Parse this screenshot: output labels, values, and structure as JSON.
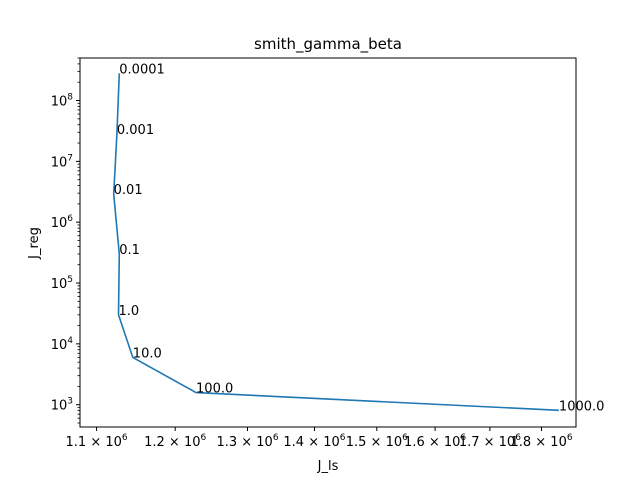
{
  "chart_data": {
    "type": "line",
    "title": "smith_gamma_beta",
    "xlabel": "J_ls",
    "ylabel": "J_reg",
    "xscale": "log",
    "yscale": "log",
    "xlim": [
      1080000,
      1870000
    ],
    "ylim": [
      430,
      500000000
    ],
    "grid": false,
    "color": "#1f77b4",
    "x_ticks": [
      {
        "value": 1100000,
        "mantissa": "1.1",
        "base": "10",
        "exp": "6"
      },
      {
        "value": 1200000,
        "mantissa": "1.2",
        "base": "10",
        "exp": "6"
      },
      {
        "value": 1300000,
        "mantissa": "1.3",
        "base": "10",
        "exp": "6"
      },
      {
        "value": 1400000,
        "mantissa": "1.4",
        "base": "10",
        "exp": "6"
      },
      {
        "value": 1500000,
        "mantissa": "1.5",
        "base": "10",
        "exp": "6"
      },
      {
        "value": 1600000,
        "mantissa": "1.6",
        "base": "10",
        "exp": "6"
      },
      {
        "value": 1700000,
        "mantissa": "1.7",
        "base": "10",
        "exp": "6"
      },
      {
        "value": 1800000,
        "mantissa": "1.8",
        "base": "10",
        "exp": "6"
      }
    ],
    "y_ticks": [
      {
        "value": 1000,
        "base": "10",
        "exp": "3"
      },
      {
        "value": 10000,
        "base": "10",
        "exp": "4"
      },
      {
        "value": 100000,
        "base": "10",
        "exp": "5"
      },
      {
        "value": 1000000,
        "base": "10",
        "exp": "6"
      },
      {
        "value": 10000000,
        "base": "10",
        "exp": "7"
      },
      {
        "value": 100000000,
        "base": "10",
        "exp": "8"
      }
    ],
    "points": [
      {
        "label": "0.0001",
        "x": 1128000,
        "y": 280000000
      },
      {
        "label": "0.001",
        "x": 1125000,
        "y": 28000000
      },
      {
        "label": "0.01",
        "x": 1121000,
        "y": 2900000
      },
      {
        "label": "0.1",
        "x": 1128000,
        "y": 300000
      },
      {
        "label": "1.0",
        "x": 1127000,
        "y": 30000
      },
      {
        "label": "10.0",
        "x": 1145000,
        "y": 6000
      },
      {
        "label": "100.0",
        "x": 1228000,
        "y": 1580
      },
      {
        "label": "1000.0",
        "x": 1835000,
        "y": 810
      }
    ]
  }
}
